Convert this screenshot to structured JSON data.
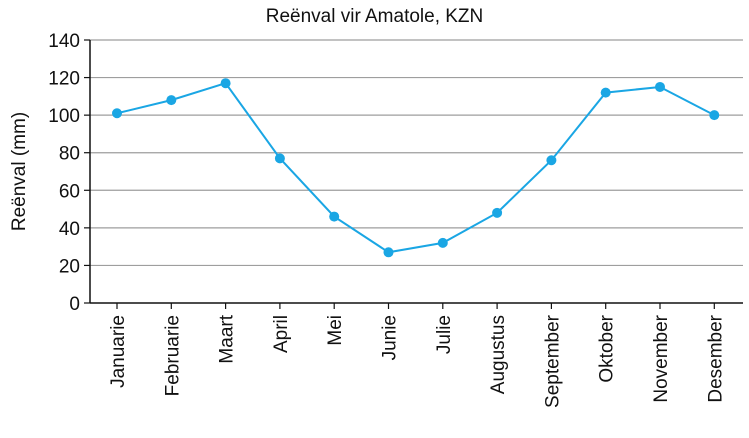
{
  "chart_data": {
    "type": "line",
    "title": "Reënval vir Amatole, KZN",
    "xlabel": "",
    "ylabel": "Reënval (mm)",
    "categories": [
      "Januarie",
      "Februarie",
      "Maart",
      "April",
      "Mei",
      "Junie",
      "Julie",
      "Augustus",
      "September",
      "Oktober",
      "November",
      "Desember"
    ],
    "series": [
      {
        "values": [
          101,
          108,
          117,
          77,
          46,
          27,
          32,
          48,
          76,
          112,
          115,
          100
        ]
      }
    ],
    "ylim": [
      0,
      140
    ],
    "yticks": [
      0,
      20,
      40,
      60,
      80,
      100,
      120,
      140
    ],
    "grid": "horizontal",
    "legend": "none",
    "colors": {
      "line": "#1aa6e4",
      "marker": "#1aa6e4",
      "grid": "#9e9e9e",
      "axis": "#111111"
    }
  }
}
